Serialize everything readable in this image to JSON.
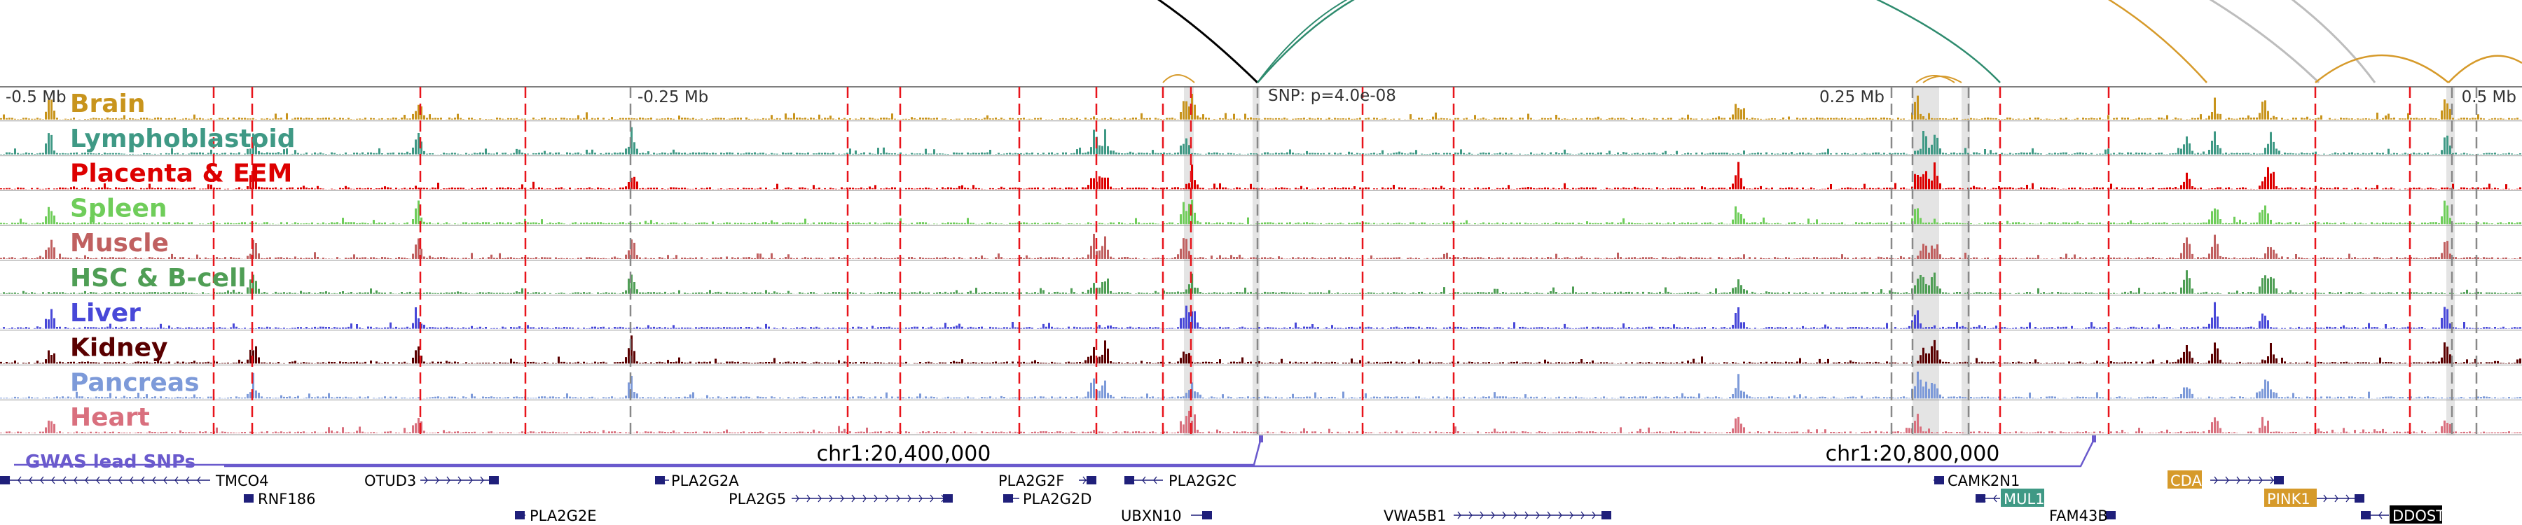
{
  "view": {
    "scale_labels": [
      {
        "text": "-0.5 Mb",
        "anchor": "start"
      },
      {
        "text": "-0.25 Mb",
        "anchor": "start"
      },
      {
        "text": "0.25 Mb",
        "anchor": "end"
      },
      {
        "text": "0.5 Mb",
        "anchor": "end"
      }
    ],
    "snp_label": "SNP: p=4.0e-08",
    "coord_labels": [
      "chr1:20,400,000",
      "chr1:20,800,000"
    ],
    "gwas_label": "GWAS lead SNPs"
  },
  "colors": {
    "marker_red": "#e8141b",
    "marker_gray": "#888888",
    "highlight": "#e4e4e4",
    "gene": "#1f1f7a",
    "gwas": "#6a5acd",
    "arc_black": "#000000",
    "arc_green": "#2e8b6e",
    "arc_gold": "#d69a2a",
    "arc_gray": "#bdbdbd"
  },
  "tracks": [
    {
      "name": "Brain",
      "color": "#c8941c"
    },
    {
      "name": "Lymphoblastoid",
      "color": "#3f9985"
    },
    {
      "name": "Placenta & EEM",
      "color": "#dd0000"
    },
    {
      "name": "Spleen",
      "color": "#6fcd5a"
    },
    {
      "name": "Muscle",
      "color": "#c06060"
    },
    {
      "name": "HSC & B-cell",
      "color": "#4f9e55"
    },
    {
      "name": "Liver",
      "color": "#4848d8"
    },
    {
      "name": "Kidney",
      "color": "#5a0000"
    },
    {
      "name": "Pancreas",
      "color": "#7d9ad9"
    },
    {
      "name": "Heart",
      "color": "#d9707e"
    }
  ],
  "genes": [
    {
      "name": "TMCO4",
      "badge": ""
    },
    {
      "name": "RNF186",
      "badge": ""
    },
    {
      "name": "OTUD3",
      "badge": ""
    },
    {
      "name": "PLA2G2E",
      "badge": ""
    },
    {
      "name": "PLA2G2A",
      "badge": ""
    },
    {
      "name": "PLA2G5",
      "badge": ""
    },
    {
      "name": "PLA2G2F",
      "badge": ""
    },
    {
      "name": "PLA2G2D",
      "badge": ""
    },
    {
      "name": "PLA2G2C",
      "badge": ""
    },
    {
      "name": "UBXN10",
      "badge": ""
    },
    {
      "name": "VWA5B1",
      "badge": ""
    },
    {
      "name": "CAMK2N1",
      "badge": ""
    },
    {
      "name": "MUL1",
      "badge": "#3f9985"
    },
    {
      "name": "FAM43B",
      "badge": ""
    },
    {
      "name": "CDA",
      "badge": "#d69a2a"
    },
    {
      "name": "PINK1",
      "badge": "#d69a2a"
    },
    {
      "name": "DDOST",
      "badge": "#000000"
    }
  ]
}
